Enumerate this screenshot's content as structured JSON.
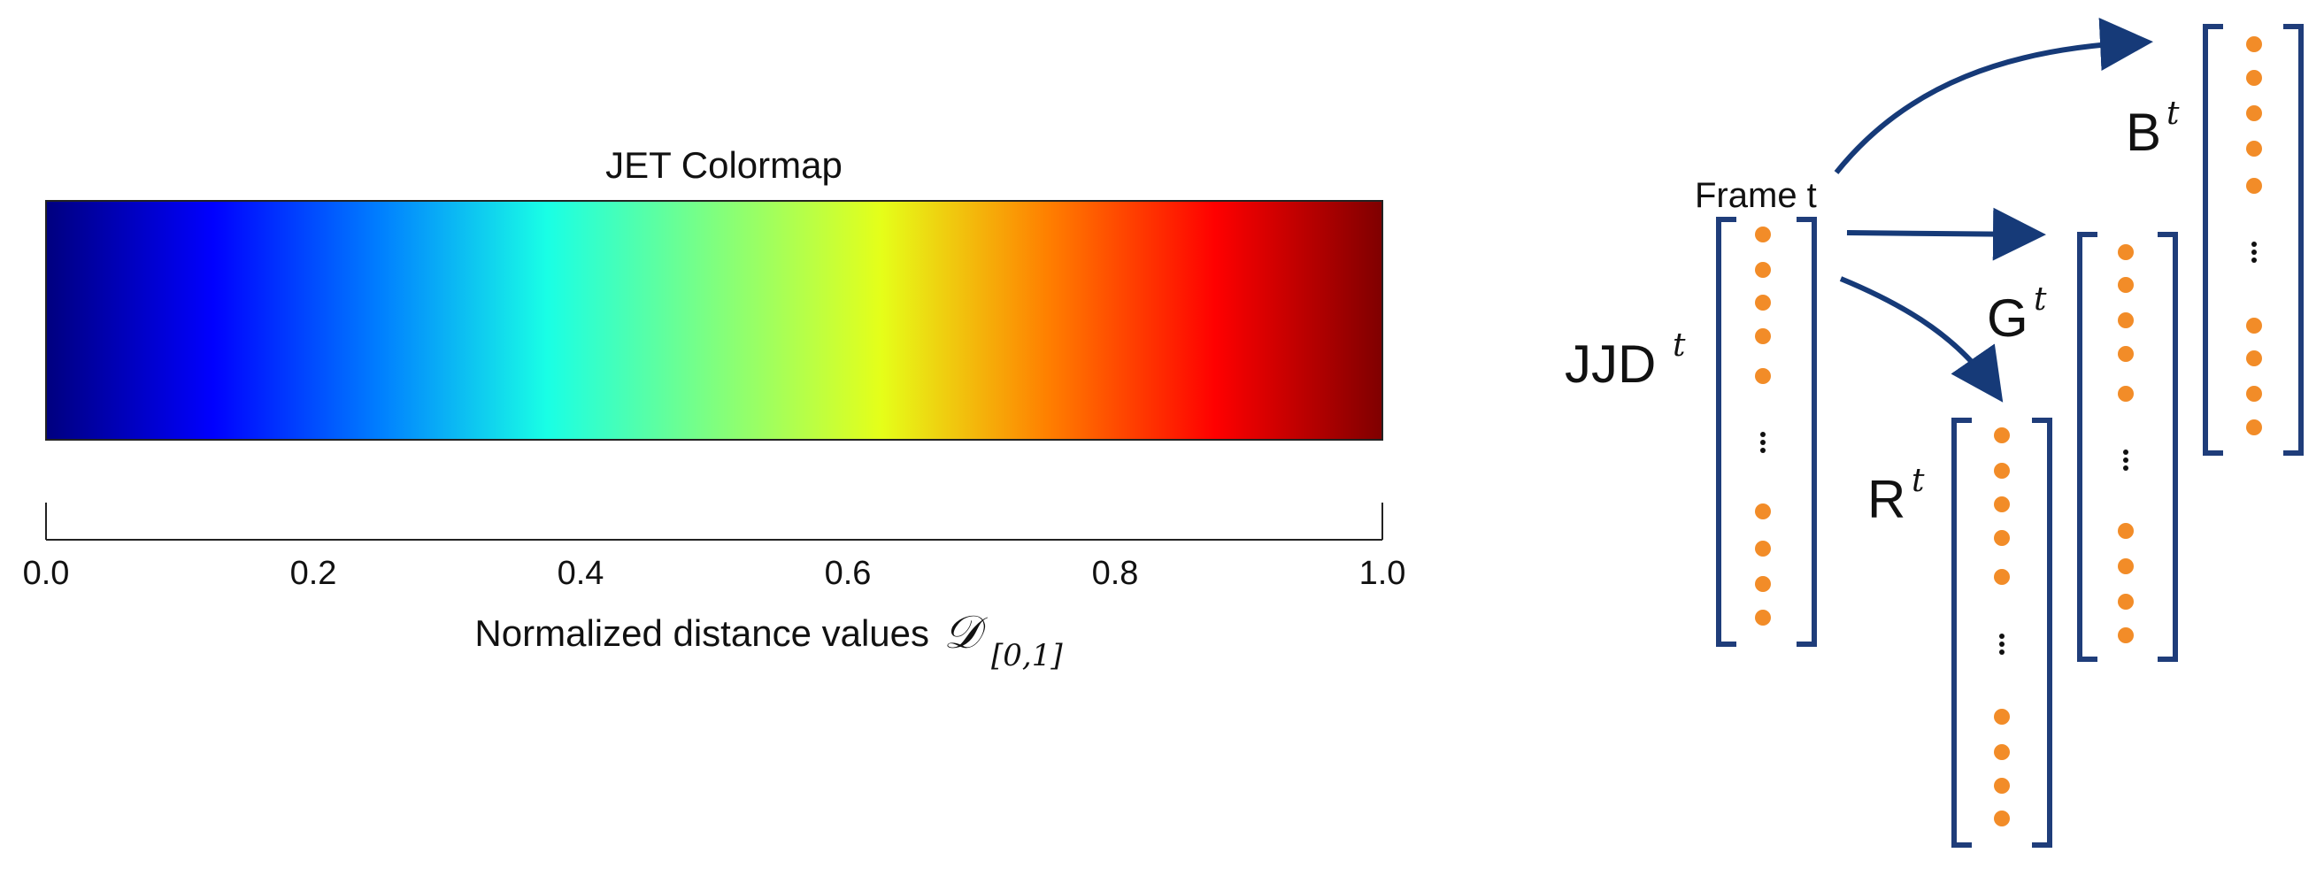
{
  "colorbar": {
    "title": "JET Colormap",
    "colormap": "jet",
    "axis_label": "Normalized distance values",
    "axis_symbol": "𝒟",
    "axis_subscript": "[0,1]",
    "ticks": [
      "0.0",
      "0.2",
      "0.4",
      "0.6",
      "0.8",
      "1.0"
    ],
    "range": [
      0.0,
      1.0
    ],
    "colors": {
      "stops": [
        "#00007f",
        "#0000ff",
        "#007fff",
        "#19ffe5",
        "#7fff7f",
        "#e5ff19",
        "#ff7f00",
        "#ff0000",
        "#7f0000"
      ]
    }
  },
  "diagram": {
    "frame_label": "Frame t",
    "input_vector": {
      "name": "JJD",
      "superscript": "t"
    },
    "outputs": [
      {
        "name": "B",
        "superscript": "t"
      },
      {
        "name": "G",
        "superscript": "t"
      },
      {
        "name": "R",
        "superscript": "t"
      }
    ],
    "colors": {
      "bracket": "#1f3d7a",
      "dot": "#f28c28",
      "arrow": "#163a78",
      "ellipsis": "#111111"
    },
    "ellipsis": "⋮"
  }
}
